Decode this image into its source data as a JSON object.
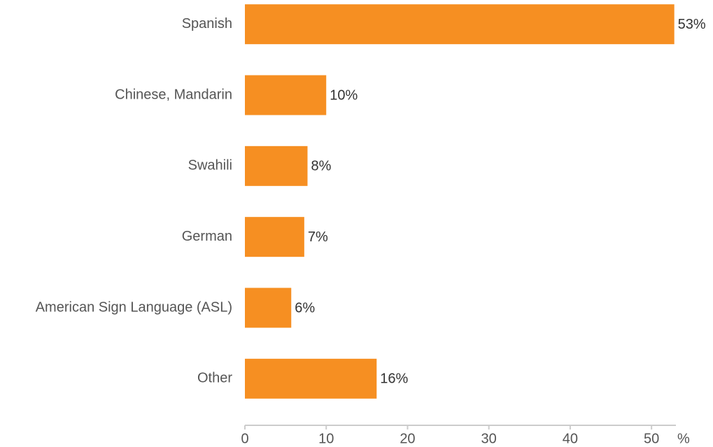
{
  "chart_data": {
    "type": "bar",
    "orientation": "horizontal",
    "categories": [
      "Spanish",
      "Chinese, Mandarin",
      "Swahili",
      "German",
      "American Sign Language (ASL)",
      "Other"
    ],
    "values": [
      52.8,
      10.0,
      7.7,
      7.3,
      5.7,
      16.2
    ],
    "value_labels": [
      "53%",
      "10%",
      "8%",
      "7%",
      "6%",
      "16%"
    ],
    "color": "#f68f22",
    "x_label": "%",
    "xlim": [
      0,
      53
    ],
    "xticks": [
      0,
      10,
      20,
      30,
      40,
      50
    ],
    "grid": false
  }
}
